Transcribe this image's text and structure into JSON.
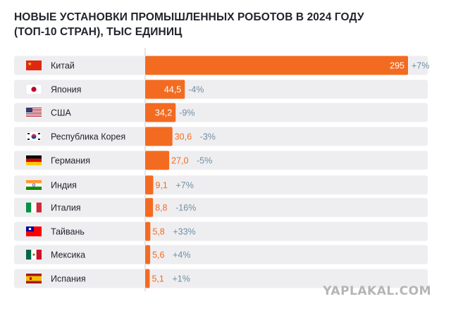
{
  "header": {
    "title_line1": "НОВЫЕ УСТАНОВКИ ПРОМЫШЛЕННЫХ РОБОТОВ В 2024 ГОДУ",
    "title_line2": "(ТОП-10 СТРАН), ТЫС ЕДИНИЦ"
  },
  "watermark": "YAPLAKAL.COM",
  "colors": {
    "bar": "#f36b21",
    "row_bg": "#eeeef0",
    "change": "#6f8ea4",
    "value_inside": "#ffffff",
    "value_outside": "#f36b21",
    "label": "#23252d"
  },
  "chart_data": {
    "type": "bar",
    "orientation": "horizontal",
    "title": "НОВЫЕ УСТАНОВКИ ПРОМЫШЛЕННЫХ РОБОТОВ В 2024 ГОДУ (ТОП-10 СТРАН), ТЫС ЕДИНИЦ",
    "categories": [
      "Китай",
      "Япония",
      "США",
      "Республика Корея",
      "Германия",
      "Индия",
      "Италия",
      "Тайвань",
      "Мексика",
      "Испания"
    ],
    "flags": [
      "china-flag-icon",
      "japan-flag-icon",
      "usa-flag-icon",
      "south-korea-flag-icon",
      "germany-flag-icon",
      "india-flag-icon",
      "italy-flag-icon",
      "taiwan-flag-icon",
      "mexico-flag-icon",
      "spain-flag-icon"
    ],
    "values": [
      295,
      44.5,
      34.2,
      30.6,
      27.0,
      9.1,
      8.8,
      5.8,
      5.6,
      5.1
    ],
    "value_labels": [
      "295",
      "44,5",
      "34,2",
      "30,6",
      "27,0",
      "9,1",
      "8,8",
      "5,8",
      "5,6",
      "5,1"
    ],
    "changes": [
      "+7%",
      "-4%",
      "-9%",
      "-3%",
      "-5%",
      "+7%",
      "-16%",
      "+33%",
      "+4%",
      "+1%"
    ],
    "xlim": [
      0,
      295
    ]
  }
}
